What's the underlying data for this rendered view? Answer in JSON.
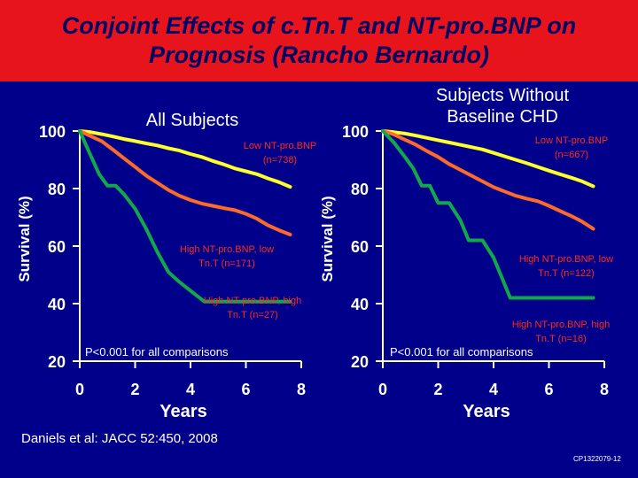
{
  "slide": {
    "title_line1": "Conjoint Effects of c.Tn.T and NT-pro.BNP on",
    "title_line2": "Prognosis (Rancho Bernardo)",
    "citation": "Daniels et al:  JACC 52:450, 2008",
    "slide_code": "CP1322079-12"
  },
  "colors": {
    "background": "#00008a",
    "title_bar": "#e8141b",
    "title_text": "#000066",
    "low_ntprobnp": "#ffff2b",
    "high_ntprobnp_low_tnt": "#ff6a2a",
    "high_ntprobnp_high_tnt": "#11a84a"
  },
  "chart_data": [
    {
      "type": "line",
      "title": "All Subjects",
      "xlabel": "Years",
      "ylabel": "Survival (%)",
      "xlim": [
        0,
        8
      ],
      "ylim": [
        20,
        100
      ],
      "xticks": [
        "0",
        "2",
        "4",
        "6",
        "8"
      ],
      "yticks": [
        "20",
        "40",
        "60",
        "80",
        "100"
      ],
      "grid": false,
      "annotation": "P<0.001 for all comparisons",
      "series": [
        {
          "name": "Low NT-pro.BNP (n=738)",
          "color": "#ffff2b",
          "x": [
            0,
            0.4,
            0.8,
            1.2,
            1.6,
            2.0,
            2.4,
            2.8,
            3.2,
            3.6,
            4.0,
            4.4,
            4.8,
            5.2,
            5.6,
            6.0,
            6.4,
            6.8,
            7.2,
            7.6
          ],
          "y": [
            100,
            99.6,
            98.9,
            98.1,
            97.2,
            96.5,
            95.7,
            95.0,
            94.0,
            93.2,
            92.0,
            91.0,
            89.6,
            88.4,
            87.0,
            86.0,
            85.0,
            83.5,
            82.2,
            80.6
          ]
        },
        {
          "name": "High NT-pro.BNP, low Tn.T (n=171)",
          "color": "#ff6a2a",
          "x": [
            0,
            0.4,
            0.8,
            1.2,
            1.6,
            2.0,
            2.4,
            2.8,
            3.2,
            3.6,
            4.0,
            4.4,
            4.8,
            5.2,
            5.6,
            6.0,
            6.4,
            6.8,
            7.2,
            7.6
          ],
          "y": [
            100,
            98.2,
            96.4,
            93.5,
            90.5,
            87.5,
            84.5,
            82.0,
            79.5,
            77.5,
            76.0,
            74.8,
            74.0,
            73.2,
            72.5,
            71.2,
            69.5,
            67.2,
            65.5,
            64.0
          ]
        },
        {
          "name": "High NT-pro.BNP, high Tn.T (n=27)",
          "color": "#11a84a",
          "x": [
            0,
            0.35,
            0.7,
            1.0,
            1.3,
            1.6,
            2.0,
            2.4,
            2.8,
            3.2,
            3.6,
            4.0,
            4.5,
            5.0,
            5.5,
            6.0,
            6.5,
            7.0,
            7.2,
            7.6
          ],
          "y": [
            100,
            92.5,
            85,
            81,
            81,
            78,
            73,
            66,
            58,
            51,
            47.5,
            44.5,
            40.7,
            40.7,
            40.7,
            40.7,
            40.7,
            40.7,
            40.7,
            40.7
          ]
        }
      ]
    },
    {
      "type": "line",
      "title": "Subjects Without Baseline CHD",
      "title_lines": [
        "Subjects Without",
        "Baseline CHD"
      ],
      "xlabel": "Years",
      "ylabel": "Survival (%)",
      "xlim": [
        0,
        8
      ],
      "ylim": [
        20,
        100
      ],
      "xticks": [
        "0",
        "2",
        "4",
        "6",
        "8"
      ],
      "yticks": [
        "20",
        "40",
        "60",
        "80",
        "100"
      ],
      "grid": false,
      "annotation": "P<0.001 for all comparisons",
      "series": [
        {
          "name": "Low NT-pro.BNP (n=667)",
          "color": "#ffff2b",
          "x": [
            0,
            0.4,
            0.8,
            1.2,
            1.6,
            2.0,
            2.4,
            2.8,
            3.2,
            3.6,
            4.0,
            4.4,
            4.8,
            5.2,
            5.6,
            6.0,
            6.4,
            6.8,
            7.2,
            7.6
          ],
          "y": [
            100,
            99.6,
            99.1,
            98.4,
            97.6,
            96.8,
            96.0,
            95.2,
            94.4,
            93.6,
            92.4,
            91.2,
            90.0,
            88.8,
            87.5,
            86.2,
            85.0,
            83.8,
            82.5,
            80.8
          ]
        },
        {
          "name": "High NT-pro.BNP, low Tn.T (n=122)",
          "color": "#ff6a2a",
          "x": [
            0,
            0.4,
            0.8,
            1.2,
            1.6,
            2.0,
            2.4,
            2.8,
            3.2,
            3.6,
            4.0,
            4.4,
            4.8,
            5.2,
            5.6,
            6.0,
            6.4,
            6.8,
            7.2,
            7.6
          ],
          "y": [
            100,
            98.8,
            97.0,
            95.2,
            93.0,
            91.0,
            88.5,
            86.5,
            84.5,
            82.5,
            80.5,
            79.0,
            77.5,
            76.5,
            75.6,
            74.0,
            72.2,
            70.5,
            68.5,
            66.0
          ]
        },
        {
          "name": "High NT-pro.BNP, high Tn.T (n=16)",
          "color": "#11a84a",
          "x": [
            0,
            0.4,
            0.8,
            1.1,
            1.4,
            1.7,
            2.0,
            2.4,
            2.8,
            3.1,
            3.6,
            4.0,
            4.6,
            5.0,
            5.4,
            6.0,
            6.5,
            7.0,
            7.4,
            7.6
          ],
          "y": [
            100,
            96,
            91,
            87,
            81,
            81,
            75,
            75,
            69,
            62,
            62,
            56,
            42,
            42,
            42,
            42,
            42,
            42,
            42,
            42
          ]
        }
      ]
    }
  ]
}
